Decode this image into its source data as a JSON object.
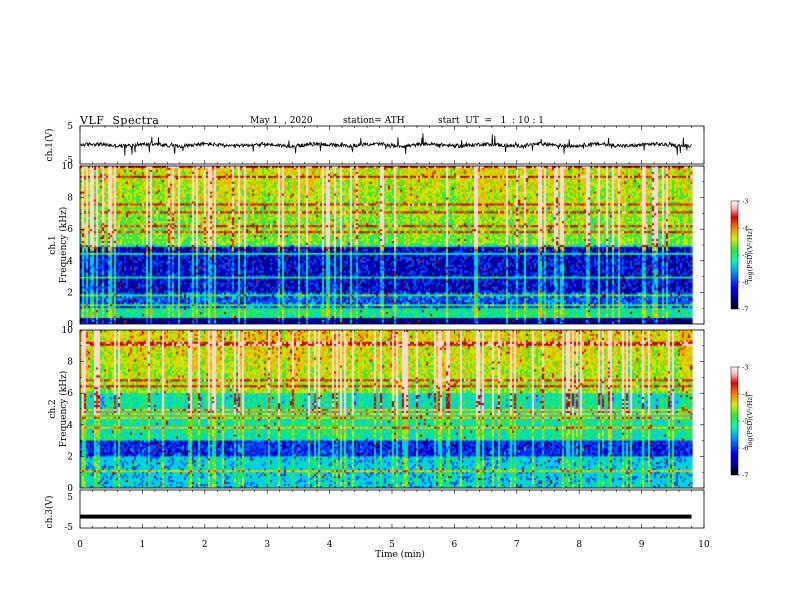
{
  "header": {
    "title": "VLF  Spectra",
    "date": "May 1  , 2020",
    "station": "station= ATH",
    "start": "start  UT  =   1  : 10 : 1"
  },
  "chart_data": [
    {
      "type": "line",
      "name": "ch1-waveform",
      "ylabel": "ch.1(V)",
      "ylim": [
        -5,
        5
      ],
      "yticks": [
        "5",
        "-5"
      ],
      "x_range": [
        0,
        9.8
      ],
      "amplitude_typical": 0.8,
      "color": "#000000"
    },
    {
      "type": "heatmap",
      "name": "ch1-spectrogram",
      "ylabel": [
        "ch.1",
        "Frequency (kHz)"
      ],
      "ylim": [
        0,
        10
      ],
      "yticks": [
        "0",
        "2",
        "4",
        "6",
        "8",
        "10"
      ],
      "x_range": [
        0,
        9.8
      ],
      "colorbar": {
        "label": "log(PSD)(V²/Hz)",
        "ticks": [
          "-3",
          "-4",
          "-5",
          "-6",
          "-7"
        ],
        "range": [
          -7,
          -3
        ]
      }
    },
    {
      "type": "heatmap",
      "name": "ch2-spectrogram",
      "ylabel": [
        "ch.2",
        "Frequency (kHz)"
      ],
      "ylim": [
        0,
        10
      ],
      "yticks": [
        "0",
        "2",
        "4",
        "6",
        "8",
        "10"
      ],
      "x_range": [
        0,
        9.8
      ],
      "colorbar": {
        "label": "log(PSD)(V²/Hz)",
        "ticks": [
          "-3",
          "-4",
          "-5",
          "-6",
          "-7"
        ],
        "range": [
          -7,
          -3
        ]
      }
    },
    {
      "type": "line",
      "name": "ch3-waveform",
      "ylabel": "ch.3(V)",
      "ylim": [
        -5,
        5
      ],
      "yticks": [
        "5",
        "-5"
      ],
      "x_range": [
        0,
        9.8
      ],
      "level": -2,
      "color": "#000000"
    }
  ],
  "xaxis": {
    "label": "Time  (min)",
    "min": 0,
    "max": 10,
    "ticks": [
      "0",
      "1",
      "2",
      "3",
      "4",
      "5",
      "6",
      "7",
      "8",
      "9",
      "10"
    ]
  },
  "colormap": [
    "#000060",
    "#0000c8",
    "#0050ff",
    "#00c8ff",
    "#00e890",
    "#40e830",
    "#c8e800",
    "#f0b000",
    "#e04000",
    "#c00000",
    "#ffd8d8",
    "#ffffff"
  ]
}
